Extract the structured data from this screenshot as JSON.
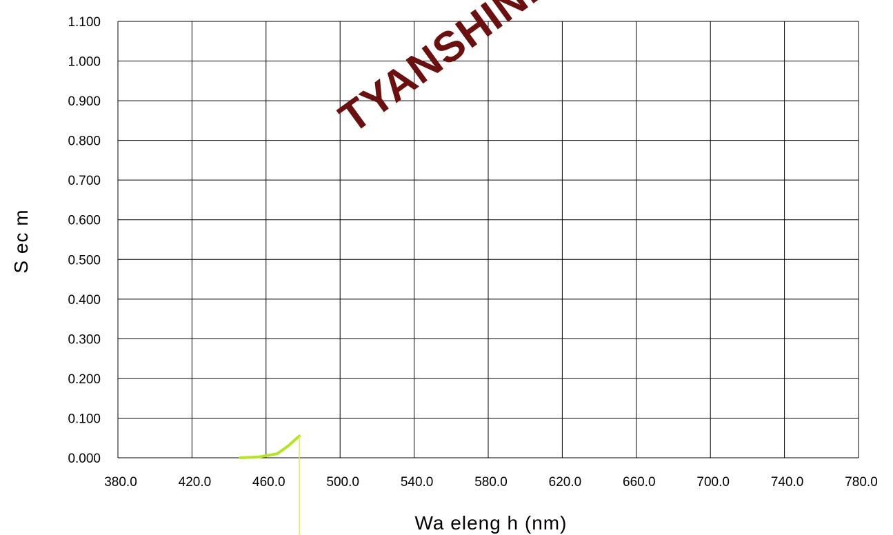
{
  "chart_data": {
    "type": "line",
    "xlabel": "Wa eleng h (nm)",
    "ylabel": "S ec m",
    "xlim": [
      380,
      780
    ],
    "ylim": [
      0,
      1.1
    ],
    "x_ticks": [
      "380.0",
      "420.0",
      "460.0",
      "500.0",
      "540.0",
      "580.0",
      "620.0",
      "660.0",
      "700.0",
      "740.0",
      "780.0"
    ],
    "y_ticks": [
      "0.000",
      "0.100",
      "0.200",
      "0.300",
      "0.400",
      "0.500",
      "0.600",
      "0.700",
      "0.800",
      "0.900",
      "1.000",
      "1.100"
    ],
    "grid": true,
    "series": [
      {
        "x": [
          446,
          456,
          466,
          472,
          478
        ],
        "y": [
          0.0,
          0.002,
          0.01,
          0.03,
          0.055
        ]
      }
    ],
    "marker_line_x": 478,
    "colors": {
      "series": "#b5e61d",
      "marker_line": "#e0ef4a",
      "grid": "#000000",
      "watermark": "#6b0f0f"
    }
  },
  "watermark_text": "TYANSHINE"
}
